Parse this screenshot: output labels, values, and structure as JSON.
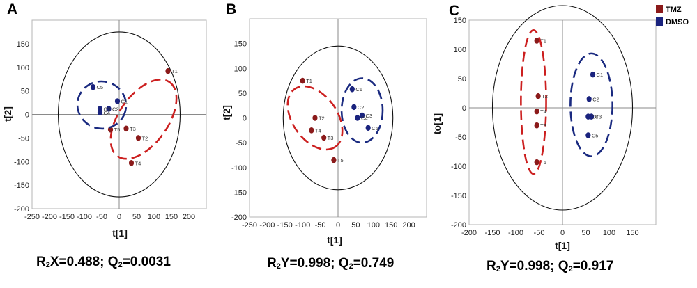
{
  "legend": [
    {
      "name": "TMZ",
      "color": "#8b1a1a"
    },
    {
      "name": "DMSO",
      "color": "#1a237e"
    }
  ],
  "stats": [
    {
      "part1": "R",
      "sub1": "2",
      "part2": "X=0.488; Q",
      "sub2": "2",
      "part3": "=0.0031"
    },
    {
      "part1": "R",
      "sub1": "2",
      "part2": "Y=0.998; Q",
      "sub2": "2",
      "part3": "=0.749"
    },
    {
      "part1": "R",
      "sub1": "2",
      "part2": "Y=0.998; Q",
      "sub2": "2",
      "part3": "=0.917"
    }
  ],
  "chart_data": [
    {
      "type": "scatter",
      "panel": "A",
      "xlabel": "t[1]",
      "ylabel": "t[2]",
      "xlim": [
        -250,
        250
      ],
      "ylim": [
        -200,
        200
      ],
      "xticks": [
        -250,
        -200,
        -150,
        -100,
        -50,
        0,
        50,
        100,
        150,
        200
      ],
      "yticks": [
        -200,
        -150,
        -100,
        -50,
        0,
        50,
        100,
        150
      ],
      "hotelling_ellipse": {
        "cx": 0,
        "cy": 0,
        "rx": 175,
        "ry": 175
      },
      "series": [
        {
          "name": "TMZ",
          "color": "#8b1a1a",
          "points": [
            {
              "label": "T1",
              "x": 140,
              "y": 92
            },
            {
              "label": "T2",
              "x": 55,
              "y": -50
            },
            {
              "label": "T3",
              "x": 20,
              "y": -30
            },
            {
              "label": "T4",
              "x": 35,
              "y": -103
            },
            {
              "label": "T5",
              "x": -25,
              "y": -32
            }
          ],
          "ellipse": {
            "cx": 70,
            "cy": -10,
            "rx": 130,
            "ry": 52,
            "rot": 55
          }
        },
        {
          "name": "DMSO",
          "color": "#1a237e",
          "points": [
            {
              "label": "C1",
              "x": -5,
              "y": 28
            },
            {
              "label": "C2",
              "x": -30,
              "y": 12
            },
            {
              "label": "C3",
              "x": -55,
              "y": 12
            },
            {
              "label": "C4",
              "x": -55,
              "y": 4
            },
            {
              "label": "C5",
              "x": -75,
              "y": 58
            }
          ],
          "ellipse": {
            "cx": -50,
            "cy": 20,
            "rx": 70,
            "ry": 50,
            "rot": -15
          }
        }
      ]
    },
    {
      "type": "scatter",
      "panel": "B",
      "xlabel": "t[1]",
      "ylabel": "t[2]",
      "xlim": [
        -250,
        250
      ],
      "ylim": [
        -200,
        200
      ],
      "xticks": [
        -250,
        -200,
        -150,
        -100,
        -50,
        0,
        50,
        100,
        150,
        200
      ],
      "yticks": [
        -200,
        -150,
        -100,
        -50,
        0,
        50,
        100,
        150
      ],
      "hotelling_ellipse": {
        "cx": 0,
        "cy": 0,
        "rx": 155,
        "ry": 145
      },
      "series": [
        {
          "name": "TMZ",
          "color": "#8b1a1a",
          "points": [
            {
              "label": "T1",
              "x": -100,
              "y": 75
            },
            {
              "label": "T2",
              "x": -65,
              "y": 0
            },
            {
              "label": "T3",
              "x": -40,
              "y": -40
            },
            {
              "label": "T4",
              "x": -75,
              "y": -25
            },
            {
              "label": "T5",
              "x": -12,
              "y": -85
            }
          ],
          "ellipse": {
            "cx": -65,
            "cy": 0,
            "rx": 100,
            "ry": 45,
            "rot": -55
          }
        },
        {
          "name": "DMSO",
          "color": "#1a237e",
          "points": [
            {
              "label": "C1",
              "x": 40,
              "y": 58
            },
            {
              "label": "C2",
              "x": 45,
              "y": 22
            },
            {
              "label": "C3",
              "x": 68,
              "y": 5
            },
            {
              "label": "C4",
              "x": 55,
              "y": 0
            },
            {
              "label": "C5",
              "x": 85,
              "y": -20
            }
          ],
          "ellipse": {
            "cx": 68,
            "cy": 15,
            "rx": 58,
            "ry": 65,
            "rot": 0
          }
        }
      ]
    },
    {
      "type": "scatter",
      "panel": "C",
      "xlabel": "t[1]",
      "ylabel": "to[1]",
      "xlim": [
        -200,
        200
      ],
      "ylim": [
        -200,
        150
      ],
      "xticks": [
        -200,
        -150,
        -100,
        -50,
        0,
        50,
        100,
        150
      ],
      "yticks": [
        -200,
        -150,
        -100,
        -50,
        0,
        50,
        100,
        150
      ],
      "hotelling_ellipse": {
        "cx": 0,
        "cy": 0,
        "rx": 150,
        "ry": 175
      },
      "series": [
        {
          "name": "TMZ",
          "color": "#8b1a1a",
          "points": [
            {
              "label": "T1",
              "x": -55,
              "y": 115
            },
            {
              "label": "T2",
              "x": -52,
              "y": 20
            },
            {
              "label": "T3",
              "x": -55,
              "y": -30
            },
            {
              "label": "T4",
              "x": -55,
              "y": -6
            },
            {
              "label": "T5",
              "x": -55,
              "y": -93
            }
          ],
          "ellipse": {
            "cx": -62,
            "cy": 10,
            "rx": 27,
            "ry": 123,
            "rot": 0
          }
        },
        {
          "name": "DMSO",
          "color": "#1a237e",
          "points": [
            {
              "label": "C1",
              "x": 65,
              "y": 57
            },
            {
              "label": "C2",
              "x": 57,
              "y": 15
            },
            {
              "label": "C3",
              "x": 62,
              "y": -15
            },
            {
              "label": "C4",
              "x": 55,
              "y": -15
            },
            {
              "label": "C5",
              "x": 55,
              "y": -47
            }
          ],
          "ellipse": {
            "cx": 62,
            "cy": 5,
            "rx": 45,
            "ry": 88,
            "rot": 0
          }
        }
      ]
    }
  ]
}
